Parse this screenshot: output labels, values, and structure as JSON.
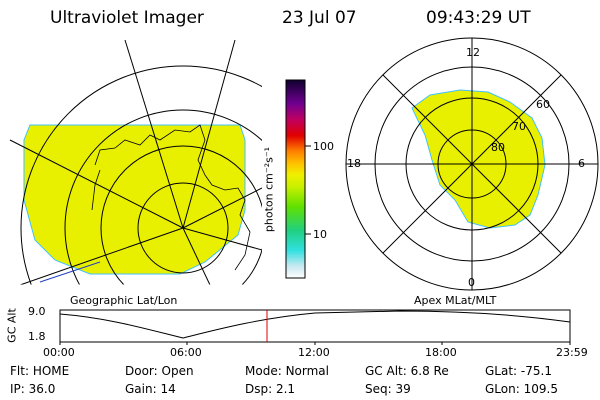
{
  "header": {
    "title": "Ultraviolet Imager",
    "date": "23 Jul 07",
    "time": "09:43:29 UT"
  },
  "colorbar": {
    "unit_label": "photon cm⁻²s⁻¹",
    "ticks": [
      "100",
      "10"
    ]
  },
  "left_map": {
    "caption": "Geographic Lat/Lon",
    "fill_color": "#e8f000"
  },
  "polar_map": {
    "caption": "Apex MLat/MLT",
    "labels": {
      "top": "12",
      "bottom": "0",
      "left": "18",
      "right": "6"
    },
    "ring_labels": [
      "60",
      "70",
      "80"
    ],
    "fill_color": "#e8f000"
  },
  "altitude_plot": {
    "ylabel": "GC Alt",
    "yticks": [
      "9.0",
      "1.8"
    ],
    "xticks": [
      "00:00",
      "06:00",
      "12:00",
      "18:00",
      "23:59"
    ],
    "marker_color": "#e00000"
  },
  "status": {
    "row1": [
      {
        "label": "Flt:",
        "value": "HOME"
      },
      {
        "label": "Door:",
        "value": "Open"
      },
      {
        "label": "Mode:",
        "value": "Normal"
      },
      {
        "label": "GC Alt:",
        "value": "6.8 Re"
      },
      {
        "label": "GLat:",
        "value": "-75.1"
      }
    ],
    "row2": [
      {
        "label": "IP:",
        "value": "36.0"
      },
      {
        "label": "Gain:",
        "value": "14"
      },
      {
        "label": "Dsp:",
        "value": "2.1"
      },
      {
        "label": "Seq:",
        "value": "39"
      },
      {
        "label": "GLon:",
        "value": "109.5"
      }
    ]
  }
}
